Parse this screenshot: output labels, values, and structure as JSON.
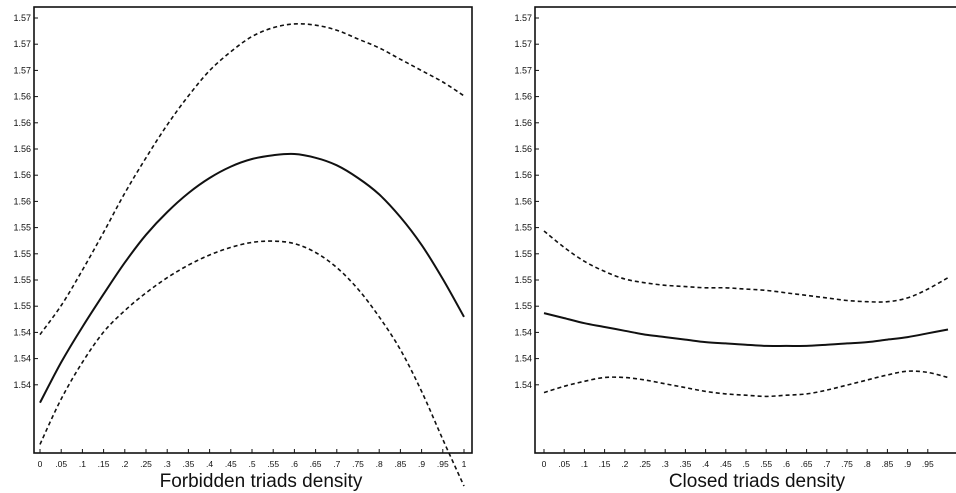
{
  "chart_data": [
    {
      "type": "line",
      "xlabel": "Forbidden triads density",
      "x_tick_labels": [
        "0",
        ".05",
        ".1",
        ".15",
        ".2",
        ".25",
        ".3",
        ".35",
        ".4",
        ".45",
        ".5",
        ".55",
        ".6",
        ".65",
        ".7",
        ".75",
        ".8",
        ".85",
        ".9",
        ".95",
        "1"
      ],
      "y_tick_labels": [
        "1.57",
        "1.57",
        "1.57",
        "1.56",
        "1.56",
        "1.56",
        "1.56",
        "1.56",
        "1.55",
        "1.55",
        "1.55",
        "1.55",
        "1.54",
        "1.54",
        "1.54"
      ],
      "xlim": [
        0,
        1
      ],
      "ylim": [
        1.5395,
        1.5745
      ],
      "grid": false,
      "series": [
        {
          "style": "dashed",
          "x": [
            0,
            0.05,
            0.1,
            0.15,
            0.2,
            0.25,
            0.3,
            0.35,
            0.4,
            0.45,
            0.5,
            0.55,
            0.6,
            0.65,
            0.7,
            0.75,
            0.8,
            0.85,
            0.9,
            0.95,
            1
          ],
          "y": [
            1.5488,
            1.5511,
            1.5539,
            1.5569,
            1.56,
            1.5628,
            1.5654,
            1.5677,
            1.5697,
            1.5712,
            1.5724,
            1.5731,
            1.5734,
            1.5733,
            1.5729,
            1.5722,
            1.5715,
            1.5706,
            1.5697,
            1.5688,
            1.5677
          ]
        },
        {
          "style": "solid",
          "x": [
            0,
            0.05,
            0.1,
            0.15,
            0.2,
            0.25,
            0.3,
            0.35,
            0.4,
            0.45,
            0.5,
            0.55,
            0.6,
            0.65,
            0.7,
            0.75,
            0.8,
            0.85,
            0.9,
            0.95,
            1
          ],
          "y": [
            1.5434,
            1.5466,
            1.5494,
            1.552,
            1.5545,
            1.5567,
            1.5585,
            1.56,
            1.5612,
            1.5621,
            1.5627,
            1.563,
            1.5631,
            1.5628,
            1.5622,
            1.5612,
            1.5599,
            1.5581,
            1.5559,
            1.5532,
            1.5502
          ]
        },
        {
          "style": "dashed",
          "x": [
            0,
            0.05,
            0.1,
            0.15,
            0.2,
            0.25,
            0.3,
            0.35,
            0.4,
            0.45,
            0.5,
            0.55,
            0.6,
            0.65,
            0.7,
            0.75,
            0.8,
            0.85,
            0.9,
            0.95,
            1
          ],
          "y": [
            1.5401,
            1.5437,
            1.5466,
            1.549,
            1.5507,
            1.5521,
            1.5533,
            1.5543,
            1.5551,
            1.5557,
            1.5561,
            1.5562,
            1.556,
            1.5553,
            1.5541,
            1.5524,
            1.5502,
            1.5476,
            1.5443,
            1.5405,
            1.5368
          ]
        }
      ]
    },
    {
      "type": "line",
      "xlabel": "Closed triads density",
      "x_tick_labels": [
        "0",
        ".05",
        ".1",
        ".15",
        ".2",
        ".25",
        ".3",
        ".35",
        ".4",
        ".45",
        ".5",
        ".55",
        ".6",
        ".65",
        ".7",
        ".75",
        ".8",
        ".85",
        ".9",
        ".95"
      ],
      "y_tick_labels": [
        "1.57",
        "1.57",
        "1.57",
        "1.56",
        "1.56",
        "1.56",
        "1.56",
        "1.56",
        "1.55",
        "1.55",
        "1.55",
        "1.55",
        "1.54",
        "1.54",
        "1.54"
      ],
      "xlim": [
        0,
        1
      ],
      "ylim": [
        1.5395,
        1.5745
      ],
      "grid": false,
      "series": [
        {
          "style": "dashed",
          "x": [
            0,
            0.05,
            0.1,
            0.15,
            0.2,
            0.25,
            0.3,
            0.35,
            0.4,
            0.45,
            0.5,
            0.55,
            0.6,
            0.65,
            0.7,
            0.75,
            0.8,
            0.85,
            0.9,
            0.95,
            1
          ],
          "y": [
            1.557,
            1.5557,
            1.5546,
            1.5538,
            1.5532,
            1.5529,
            1.5527,
            1.5526,
            1.5525,
            1.5525,
            1.5524,
            1.5523,
            1.5521,
            1.5519,
            1.5517,
            1.5515,
            1.5514,
            1.5514,
            1.5517,
            1.5524,
            1.5533
          ]
        },
        {
          "style": "solid",
          "x": [
            0,
            0.05,
            0.1,
            0.15,
            0.2,
            0.25,
            0.3,
            0.35,
            0.4,
            0.45,
            0.5,
            0.55,
            0.6,
            0.65,
            0.7,
            0.75,
            0.8,
            0.85,
            0.9,
            0.95,
            1
          ],
          "y": [
            1.5505,
            1.5501,
            1.5497,
            1.5494,
            1.5491,
            1.5488,
            1.5486,
            1.5484,
            1.5482,
            1.5481,
            1.548,
            1.5479,
            1.5479,
            1.5479,
            1.548,
            1.5481,
            1.5482,
            1.5484,
            1.5486,
            1.5489,
            1.5492
          ]
        },
        {
          "style": "dashed",
          "x": [
            0,
            0.05,
            0.1,
            0.15,
            0.2,
            0.25,
            0.3,
            0.35,
            0.4,
            0.45,
            0.5,
            0.55,
            0.6,
            0.65,
            0.7,
            0.75,
            0.8,
            0.85,
            0.9,
            0.95,
            1
          ],
          "y": [
            1.5442,
            1.5447,
            1.5451,
            1.5454,
            1.5454,
            1.5452,
            1.5449,
            1.5446,
            1.5443,
            1.5441,
            1.544,
            1.5439,
            1.544,
            1.5441,
            1.5444,
            1.5448,
            1.5452,
            1.5456,
            1.5459,
            1.5458,
            1.5454
          ]
        }
      ]
    }
  ]
}
